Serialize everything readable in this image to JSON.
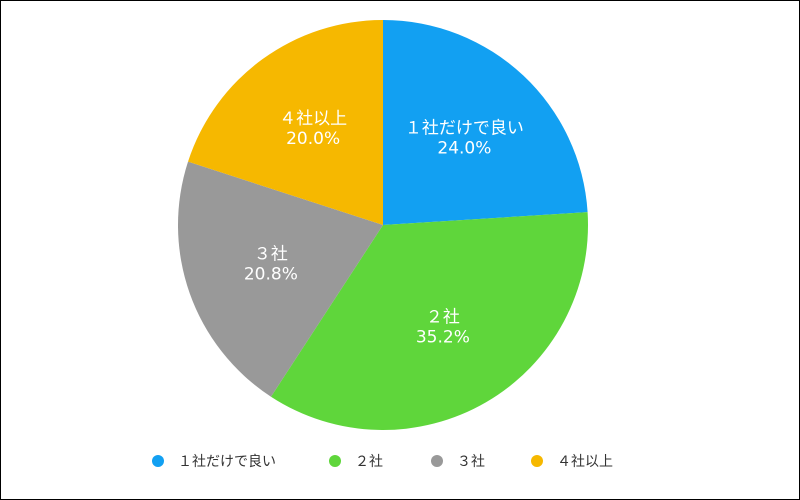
{
  "chart_data": {
    "type": "pie",
    "categories": [
      "１社だけで良い",
      "２社",
      "３社",
      "４社以上"
    ],
    "values": [
      24.0,
      35.2,
      20.8,
      20.0
    ],
    "value_labels": [
      "24.0%",
      "35.2%",
      "20.8%",
      "20.0%"
    ],
    "colors": [
      "#12a0f2",
      "#5fd63b",
      "#999999",
      "#f6b800"
    ],
    "legend": "bottom"
  }
}
